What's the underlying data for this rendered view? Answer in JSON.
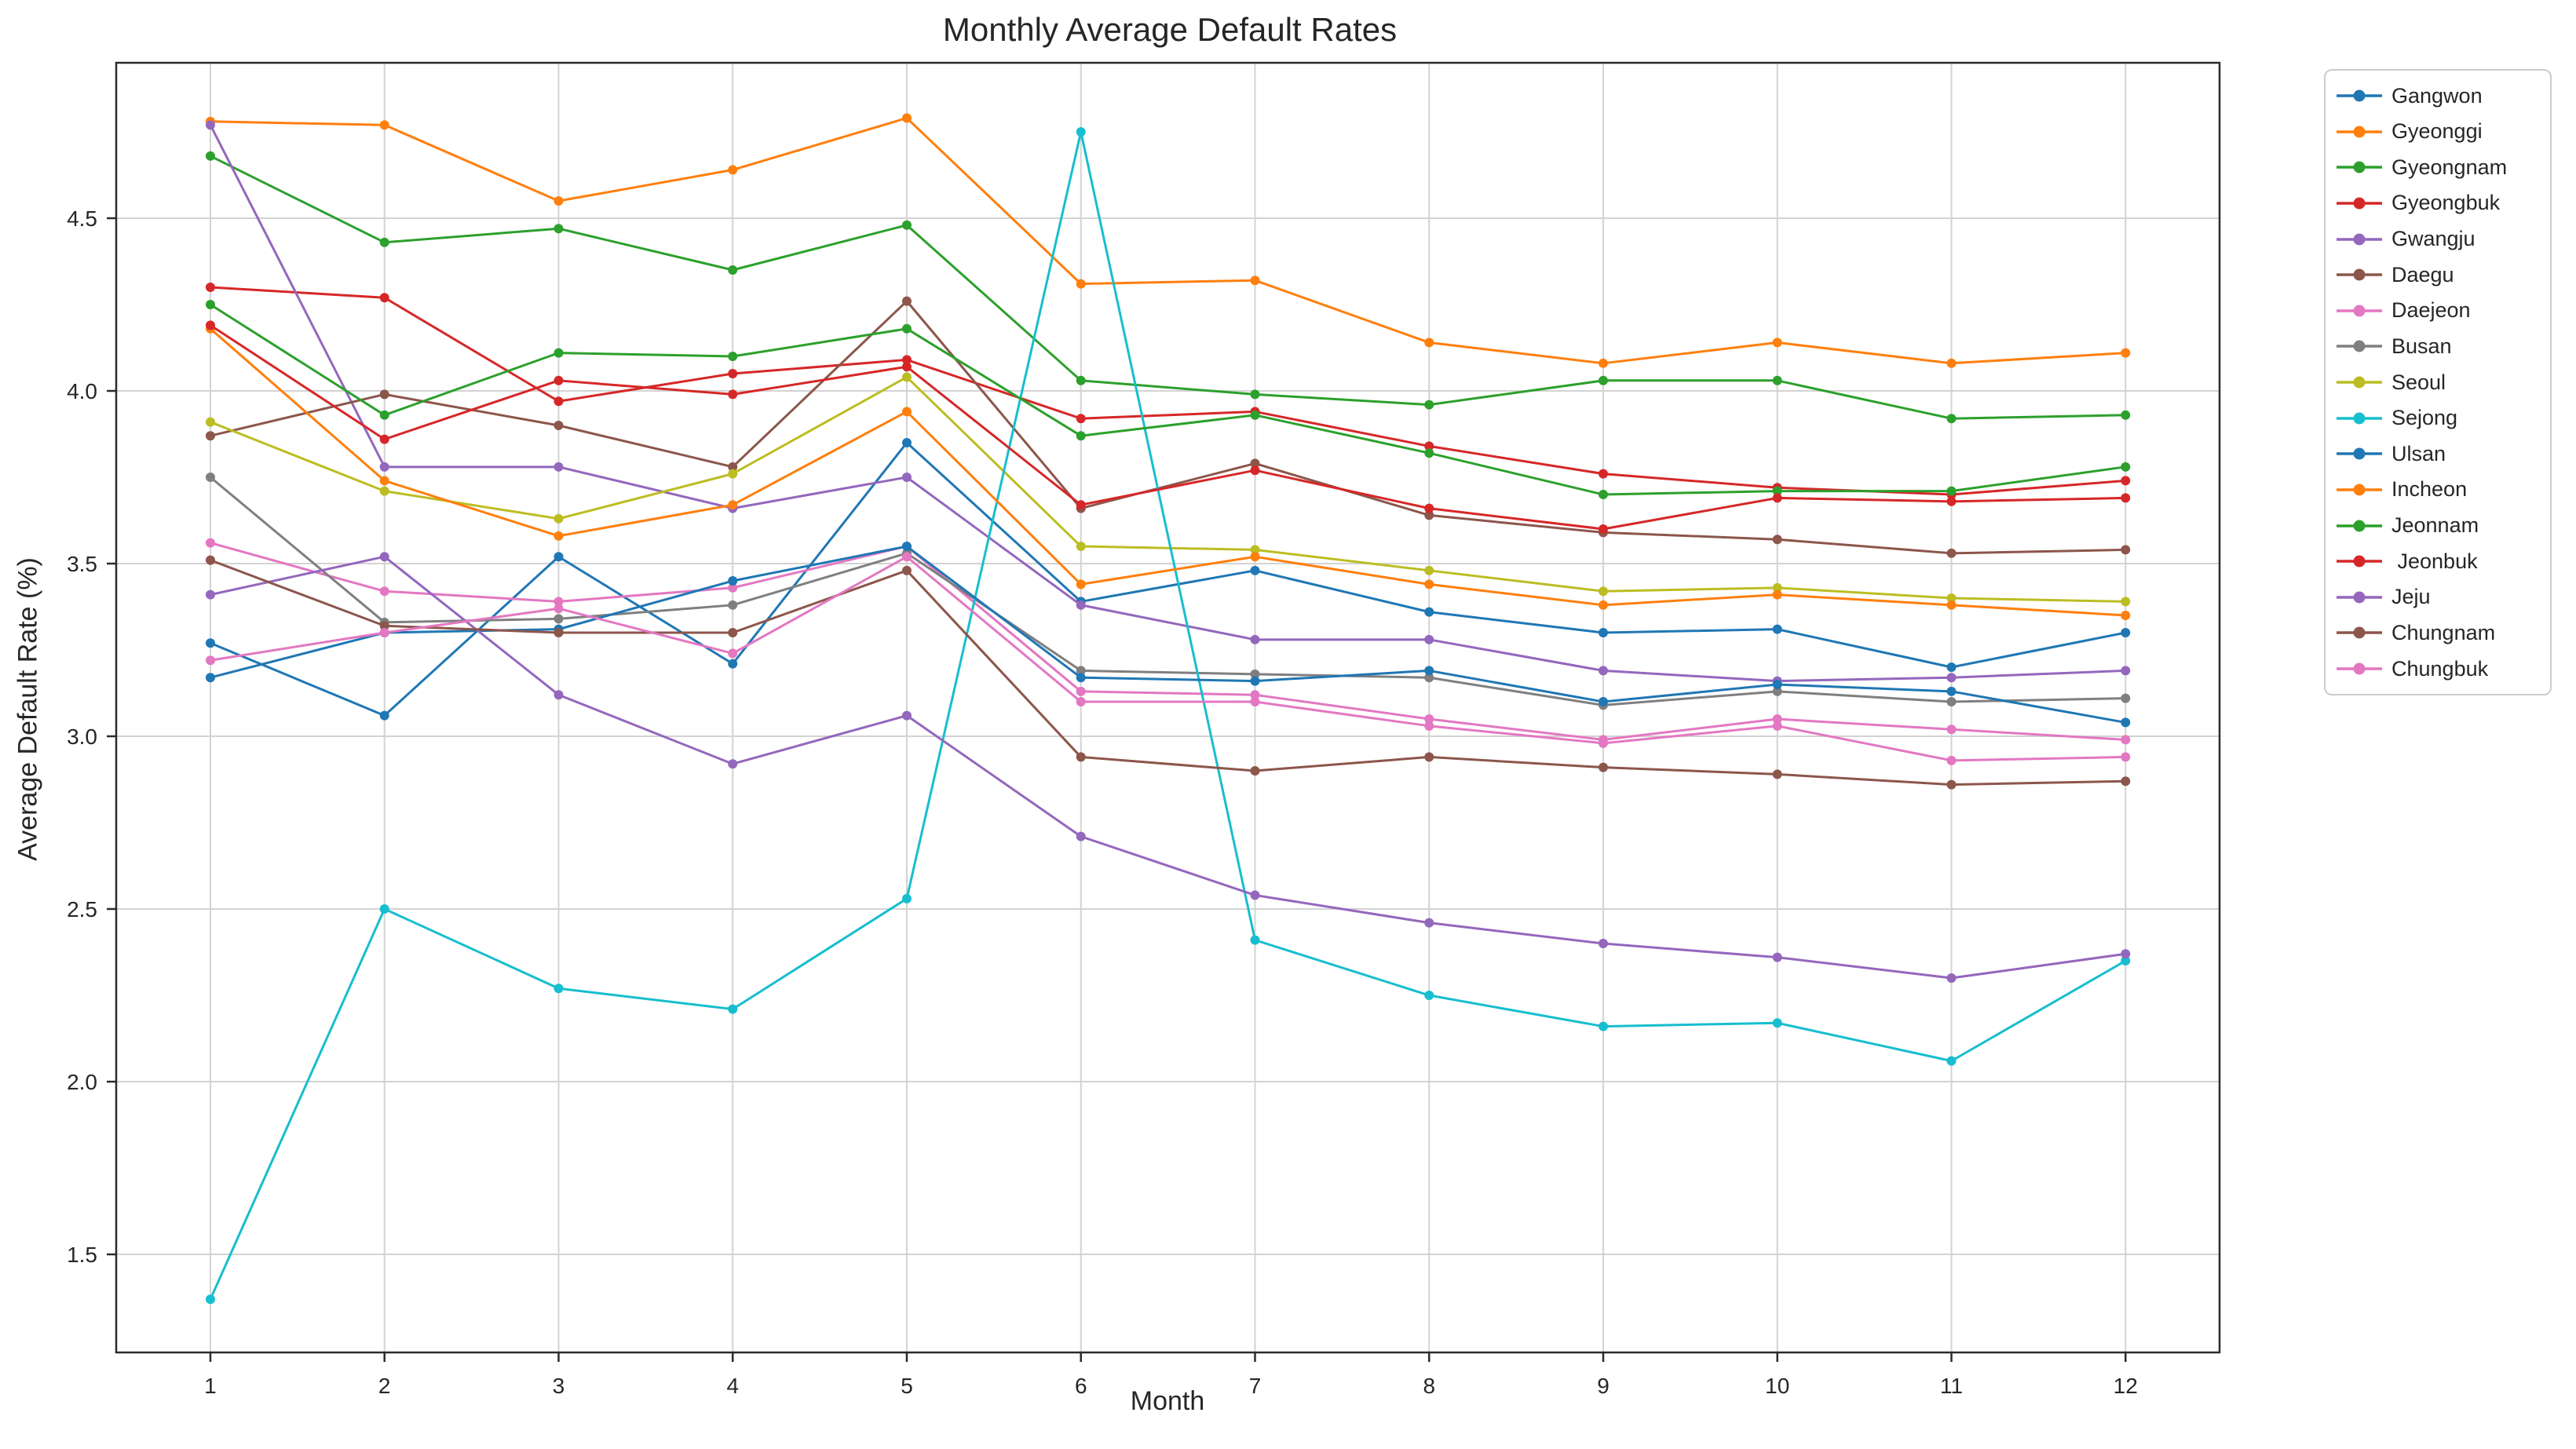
{
  "figure": {
    "title": "Monthly Average Default Rates",
    "xlabel": "Month",
    "ylabel": "Average Default Rate (%)"
  },
  "chart_data": {
    "type": "line",
    "title": "Monthly Average Default Rates",
    "xlabel": "Month",
    "ylabel": "Average Default Rate (%)",
    "grid": true,
    "legend_position": "outside-right",
    "x": [
      1,
      2,
      3,
      4,
      5,
      6,
      7,
      8,
      9,
      10,
      11,
      12
    ],
    "xtick_labels": [
      "1",
      "2",
      "3",
      "4",
      "5",
      "6",
      "7",
      "8",
      "9",
      "10",
      "11",
      "12"
    ],
    "ytick_values": [
      1.5,
      2.0,
      2.5,
      3.0,
      3.5,
      4.0,
      4.5
    ],
    "ytick_labels": [
      "1.5",
      "2.0",
      "2.5",
      "3.0",
      "3.5",
      "4.0",
      "4.5"
    ],
    "xlim": [
      0.459,
      12.54
    ],
    "ylim": [
      1.216,
      4.95
    ],
    "series": [
      {
        "name": "Gangwon",
        "color": "#1f77b4",
        "values": [
          3.27,
          3.06,
          3.52,
          3.21,
          3.85,
          3.39,
          3.48,
          3.36,
          3.3,
          3.31,
          3.2,
          3.3
        ]
      },
      {
        "name": "Gyeonggi",
        "color": "#ff7f0e",
        "values": [
          4.78,
          4.77,
          4.55,
          4.64,
          4.79,
          4.31,
          4.32,
          4.14,
          4.08,
          4.14,
          4.08,
          4.11
        ]
      },
      {
        "name": "Gyeongnam",
        "color": "#2ca02c",
        "values": [
          4.68,
          4.43,
          4.47,
          4.35,
          4.48,
          4.03,
          3.99,
          3.96,
          4.03,
          4.03,
          3.92,
          3.93
        ]
      },
      {
        "name": "Gyeongbuk",
        "color": "#d62728",
        "values": [
          4.3,
          4.27,
          3.97,
          4.05,
          4.09,
          3.92,
          3.94,
          3.84,
          3.76,
          3.72,
          3.7,
          3.74
        ]
      },
      {
        "name": "Gwangju",
        "color": "#9467bd",
        "values": [
          4.77,
          3.78,
          3.78,
          3.66,
          3.75,
          3.38,
          3.28,
          3.28,
          3.19,
          3.16,
          3.17,
          3.19
        ]
      },
      {
        "name": "Daegu",
        "color": "#8c564b",
        "values": [
          3.87,
          3.99,
          3.9,
          3.78,
          4.26,
          3.66,
          3.79,
          3.64,
          3.59,
          3.57,
          3.53,
          3.54
        ]
      },
      {
        "name": "Daejeon",
        "color": "#e377c2",
        "values": [
          3.56,
          3.42,
          3.39,
          3.43,
          3.55,
          3.13,
          3.12,
          3.05,
          2.99,
          3.05,
          3.02,
          2.99
        ]
      },
      {
        "name": "Busan",
        "color": "#7f7f7f",
        "values": [
          3.75,
          3.33,
          3.34,
          3.38,
          3.53,
          3.19,
          3.18,
          3.17,
          3.09,
          3.13,
          3.1,
          3.11
        ]
      },
      {
        "name": "Seoul",
        "color": "#bcbd22",
        "values": [
          3.91,
          3.71,
          3.63,
          3.76,
          4.04,
          3.55,
          3.54,
          3.48,
          3.42,
          3.43,
          3.4,
          3.39
        ]
      },
      {
        "name": "Sejong",
        "color": "#17becf",
        "values": [
          1.37,
          2.5,
          2.27,
          2.21,
          2.53,
          4.75,
          2.41,
          2.25,
          2.16,
          2.17,
          2.06,
          2.35
        ]
      },
      {
        "name": "Ulsan",
        "color": "#1f77b4",
        "values": [
          3.17,
          3.3,
          3.31,
          3.45,
          3.55,
          3.17,
          3.16,
          3.19,
          3.1,
          3.15,
          3.13,
          3.04
        ]
      },
      {
        "name": "Incheon",
        "color": "#ff7f0e",
        "values": [
          4.18,
          3.74,
          3.58,
          3.67,
          3.94,
          3.44,
          3.52,
          3.44,
          3.38,
          3.41,
          3.38,
          3.35
        ]
      },
      {
        "name": "Jeonnam",
        "color": "#2ca02c",
        "values": [
          4.25,
          3.93,
          4.11,
          4.1,
          4.18,
          3.87,
          3.93,
          3.82,
          3.7,
          3.71,
          3.71,
          3.78
        ]
      },
      {
        "name": " Jeonbuk",
        "color": "#d62728",
        "values": [
          4.19,
          3.86,
          4.03,
          3.99,
          4.07,
          3.67,
          3.77,
          3.66,
          3.6,
          3.69,
          3.68,
          3.69
        ]
      },
      {
        "name": "Jeju",
        "color": "#9467bd",
        "values": [
          3.41,
          3.52,
          3.12,
          2.92,
          3.06,
          2.71,
          2.54,
          2.46,
          2.4,
          2.36,
          2.3,
          2.37
        ]
      },
      {
        "name": "Chungnam",
        "color": "#8c564b",
        "values": [
          3.51,
          3.32,
          3.3,
          3.3,
          3.48,
          2.94,
          2.9,
          2.94,
          2.91,
          2.89,
          2.86,
          2.87
        ]
      },
      {
        "name": "Chungbuk",
        "color": "#e377c2",
        "values": [
          3.22,
          3.3,
          3.37,
          3.24,
          3.52,
          3.1,
          3.1,
          3.03,
          2.98,
          3.03,
          2.93,
          2.94
        ]
      }
    ]
  },
  "style": {
    "grid_color": "#d3d3d3",
    "spine_color": "#2b2b2b",
    "tick_text_color": "#262626",
    "background": "#ffffff"
  }
}
